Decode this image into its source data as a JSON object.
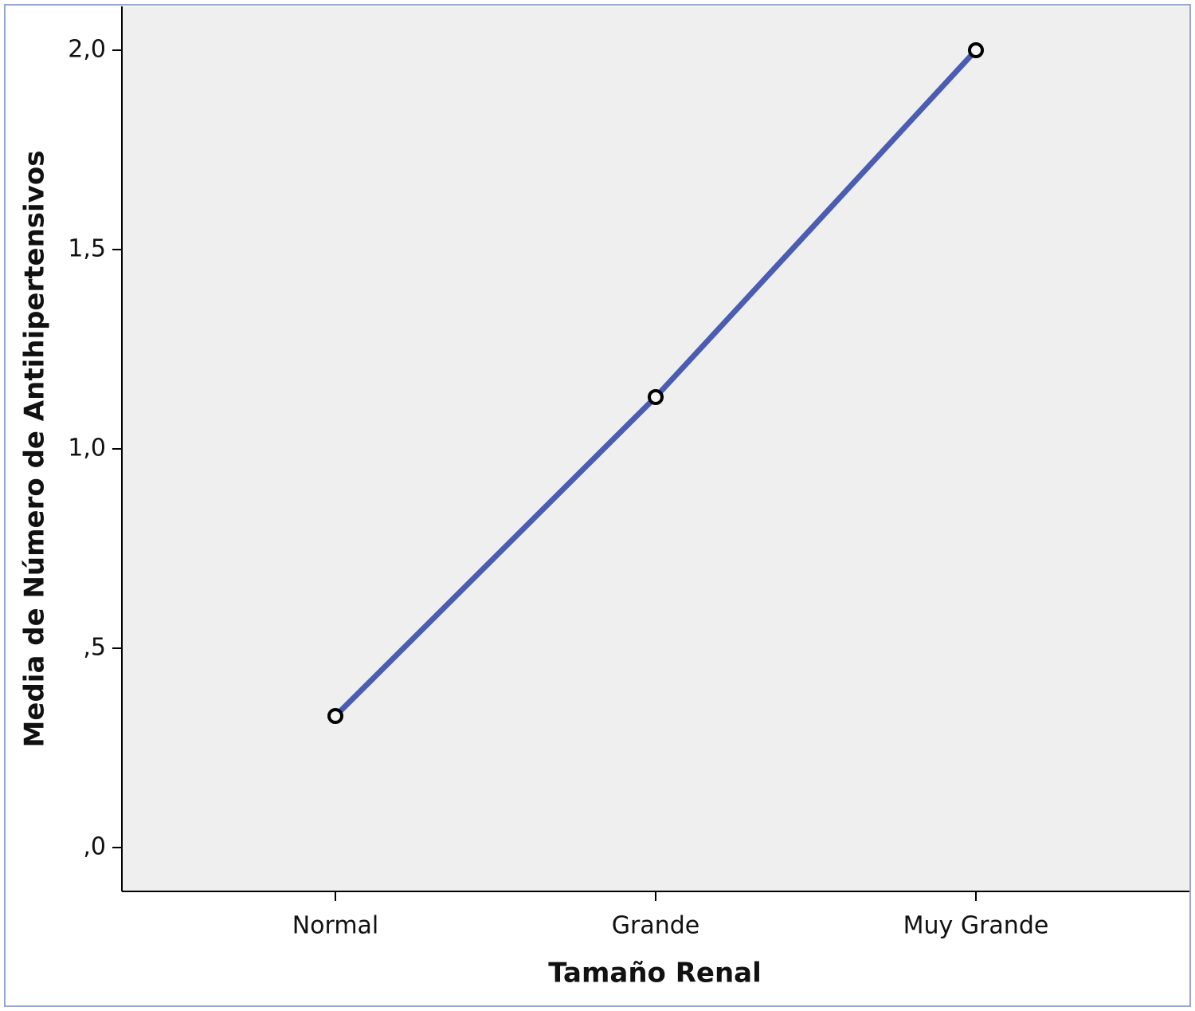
{
  "chart_data": {
    "type": "line",
    "x_label": "Tamaño Renal",
    "y_label": "Media de Número de Antihipertensivos",
    "categories": [
      "Normal",
      "Grande",
      "Muy Grande"
    ],
    "values": [
      0.33,
      1.13,
      2.0
    ],
    "color": "#4a5db3",
    "ylim": [
      -0.11,
      2.11
    ],
    "yticks": [
      {
        "value": 0,
        "label": ",0"
      },
      {
        "value": 0.5,
        "label": ",5"
      },
      {
        "value": 1,
        "label": "1,0"
      },
      {
        "value": 1.5,
        "label": "1,5"
      },
      {
        "value": 2,
        "label": "2,0"
      }
    ],
    "grid": false
  }
}
